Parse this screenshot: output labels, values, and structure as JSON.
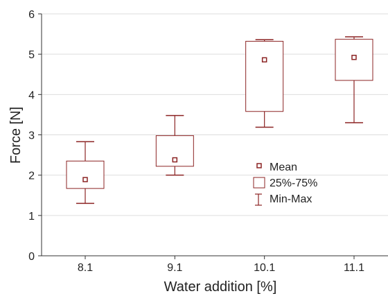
{
  "chart_data": {
    "type": "box",
    "xlabel": "Water addition [%]",
    "ylabel": "Force [N]",
    "ylim": [
      0,
      6
    ],
    "yticks": [
      "0",
      "1",
      "2",
      "3",
      "4",
      "5",
      "6"
    ],
    "categories": [
      "8.1",
      "9.1",
      "10.1",
      "11.1"
    ],
    "boxes": [
      {
        "category": "8.1",
        "min": 1.3,
        "q1": 1.67,
        "mean": 1.89,
        "q3": 2.35,
        "max": 2.83
      },
      {
        "category": "9.1",
        "min": 2.0,
        "q1": 2.22,
        "mean": 2.38,
        "q3": 2.98,
        "max": 3.48
      },
      {
        "category": "10.1",
        "min": 3.19,
        "q1": 3.58,
        "mean": 4.86,
        "q3": 5.32,
        "max": 5.36
      },
      {
        "category": "11.1",
        "min": 3.3,
        "q1": 4.35,
        "mean": 4.92,
        "q3": 5.37,
        "max": 5.43
      }
    ],
    "legend": {
      "position": "center-right",
      "items": [
        {
          "symbol": "mean-marker",
          "label": "Mean"
        },
        {
          "symbol": "box",
          "label": "25%-75%"
        },
        {
          "symbol": "whisker",
          "label": "Min-Max"
        }
      ]
    },
    "grid": "horizontal",
    "color": "#8b2323"
  }
}
